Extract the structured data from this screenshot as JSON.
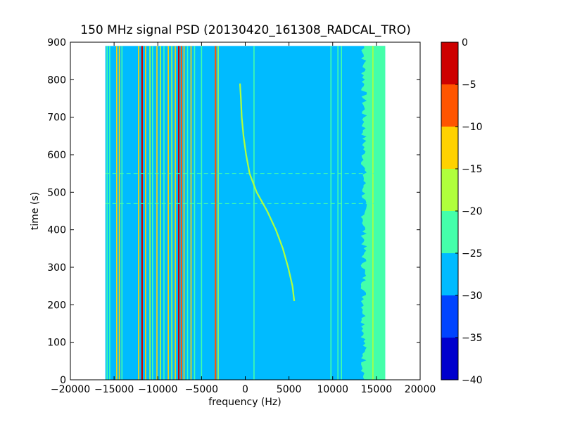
{
  "chart_data": {
    "type": "heatmap",
    "title": "150 MHz signal PSD (20130420_161308_RADCAL_TRO)",
    "xlabel": "frequency (Hz)",
    "ylabel": "time (s)",
    "xlim": [
      -20000,
      20000
    ],
    "ylim": [
      0,
      900
    ],
    "x_ticks": [
      -20000,
      -15000,
      -10000,
      -5000,
      0,
      5000,
      10000,
      15000,
      20000
    ],
    "x_tick_labels": [
      "−20000",
      "−15000",
      "−10000",
      "−5000",
      "0",
      "5000",
      "10000",
      "15000",
      "20000"
    ],
    "y_ticks": [
      0,
      100,
      200,
      300,
      400,
      500,
      600,
      700,
      800,
      900
    ],
    "y_tick_labels": [
      "0",
      "100",
      "200",
      "300",
      "400",
      "500",
      "600",
      "700",
      "800",
      "900"
    ],
    "data_extent": {
      "freq_min": -16000,
      "freq_max": 16000,
      "time_min": 0,
      "time_max": 890
    },
    "background_level_db": -27.5,
    "colorbar": {
      "levels": [
        -40,
        -35,
        -30,
        -25,
        -20,
        -15,
        -10,
        -5,
        0
      ],
      "tick_labels": [
        "−40",
        "−35",
        "−30",
        "−25",
        "−20",
        "−15",
        "−10",
        "−5",
        "0"
      ],
      "colors": [
        "#0000cd",
        "#0044ff",
        "#00bbff",
        "#44ffaa",
        "#b0ff3c",
        "#ffd200",
        "#ff5500",
        "#cd0000"
      ]
    },
    "spectral_lines": [
      {
        "freq": -15800,
        "level_db": -22.5
      },
      {
        "freq": -15500,
        "level_db": -22.5
      },
      {
        "freq": -14700,
        "level_db": -12.5
      },
      {
        "freq": -14400,
        "level_db": -12.5
      },
      {
        "freq": -14100,
        "level_db": -22.5
      },
      {
        "freq": -12200,
        "level_db": -12.5
      },
      {
        "freq": -11800,
        "level_db": -2.5
      },
      {
        "freq": -11400,
        "level_db": -12.5
      },
      {
        "freq": -10900,
        "level_db": -17.5
      },
      {
        "freq": -10600,
        "level_db": -22.5
      },
      {
        "freq": -10100,
        "level_db": -12.5
      },
      {
        "freq": -9700,
        "level_db": -17.5
      },
      {
        "freq": -9300,
        "level_db": -22.5
      },
      {
        "freq": -8800,
        "level_db": -12.5
      },
      {
        "freq": -8400,
        "level_db": -17.5
      },
      {
        "freq": -8000,
        "level_db": -12.5
      },
      {
        "freq": -7600,
        "level_db": -2.5
      },
      {
        "freq": -7300,
        "level_db": -7.5
      },
      {
        "freq": -7000,
        "level_db": -12.5
      },
      {
        "freq": -6600,
        "level_db": -22.5
      },
      {
        "freq": -6200,
        "level_db": -12.5
      },
      {
        "freq": -5800,
        "level_db": -22.5
      },
      {
        "freq": -5000,
        "level_db": -22.5
      },
      {
        "freq": -3400,
        "level_db": -7.5
      },
      {
        "freq": -3100,
        "level_db": -17.5
      },
      {
        "freq": 1000,
        "level_db": -22.5
      },
      {
        "freq": 9800,
        "level_db": -22.5
      },
      {
        "freq": 10600,
        "level_db": -22.5
      },
      {
        "freq": 11000,
        "level_db": -22.5
      },
      {
        "freq": 14600,
        "level_db": -17.5
      }
    ],
    "noise_band": {
      "freq_min": 13200,
      "freq_max": 16000,
      "level_db": -22.5
    },
    "horizontal_streaks": [
      {
        "time": 550,
        "level_db": -22.5
      },
      {
        "time": 470,
        "level_db": -22.5
      }
    ],
    "drifting_signal": {
      "level_db": -17.5,
      "points": [
        {
          "time": 210,
          "freq": 5600
        },
        {
          "time": 250,
          "freq": 5400
        },
        {
          "time": 300,
          "freq": 4900
        },
        {
          "time": 350,
          "freq": 4300
        },
        {
          "time": 400,
          "freq": 3500
        },
        {
          "time": 450,
          "freq": 2500
        },
        {
          "time": 500,
          "freq": 1300
        },
        {
          "time": 550,
          "freq": 500
        },
        {
          "time": 600,
          "freq": 100
        },
        {
          "time": 650,
          "freq": -200
        },
        {
          "time": 700,
          "freq": -400
        },
        {
          "time": 750,
          "freq": -500
        },
        {
          "time": 790,
          "freq": -600
        }
      ]
    }
  }
}
